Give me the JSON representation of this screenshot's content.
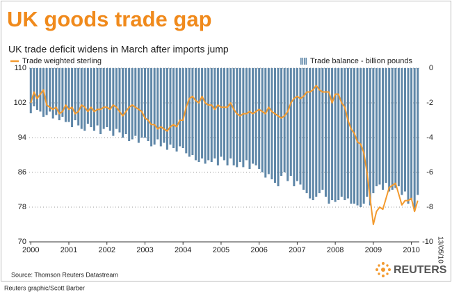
{
  "chart_data": {
    "type": "combo",
    "title": "UK goods trade gap",
    "subtitle": "UK trade deficit widens in March after imports jump",
    "source": "Source: Thomson Reuters Datastream",
    "credit": "Reuters graphic/Scott Barber",
    "date_note": "13/05/10",
    "logo": "REUTERS",
    "categories": [
      "2000",
      null,
      null,
      null,
      null,
      null,
      null,
      null,
      null,
      null,
      null,
      null,
      "2001",
      null,
      null,
      null,
      null,
      null,
      null,
      null,
      null,
      null,
      null,
      null,
      "2002",
      null,
      null,
      null,
      null,
      null,
      null,
      null,
      null,
      null,
      null,
      null,
      "2003",
      null,
      null,
      null,
      null,
      null,
      null,
      null,
      null,
      null,
      null,
      null,
      "2004",
      null,
      null,
      null,
      null,
      null,
      null,
      null,
      null,
      null,
      null,
      null,
      "2005",
      null,
      null,
      null,
      null,
      null,
      null,
      null,
      null,
      null,
      null,
      null,
      "2006",
      null,
      null,
      null,
      null,
      null,
      null,
      null,
      null,
      null,
      null,
      null,
      "2007",
      null,
      null,
      null,
      null,
      null,
      null,
      null,
      null,
      null,
      null,
      null,
      "2008",
      null,
      null,
      null,
      null,
      null,
      null,
      null,
      null,
      null,
      null,
      null,
      "2009",
      null,
      null,
      null,
      null,
      null,
      null,
      null,
      null,
      null,
      null,
      null,
      "2010",
      null,
      null
    ],
    "series": [
      {
        "name": "Trade balance - billion pounds",
        "type": "bar",
        "axis": "y2",
        "color": "#5f87a8",
        "values": [
          -2.6,
          -2.2,
          -2.4,
          -2.5,
          -2.8,
          -2.7,
          -2.5,
          -2.9,
          -2.7,
          -3.0,
          -2.8,
          -3.1,
          -3.1,
          -3.4,
          -3.0,
          -3.3,
          -3.5,
          -3.6,
          -3.2,
          -3.4,
          -3.6,
          -3.3,
          -3.8,
          -3.5,
          -3.4,
          -3.6,
          -3.9,
          -3.5,
          -3.7,
          -4.0,
          -3.8,
          -4.2,
          -4.1,
          -3.9,
          -4.3,
          -4.0,
          -4.0,
          -4.2,
          -4.5,
          -4.4,
          -4.1,
          -4.5,
          -4.3,
          -4.7,
          -4.4,
          -4.6,
          -4.8,
          -4.5,
          -4.6,
          -4.9,
          -5.1,
          -5.0,
          -5.3,
          -5.4,
          -5.2,
          -5.5,
          -5.3,
          -5.4,
          -5.2,
          -5.6,
          -5.1,
          -5.3,
          -5.6,
          -5.2,
          -5.6,
          -5.7,
          -5.4,
          -5.7,
          -5.3,
          -5.8,
          -5.5,
          -5.6,
          -5.8,
          -6.0,
          -6.3,
          -6.1,
          -6.4,
          -6.6,
          -6.8,
          -6.2,
          -6.0,
          -6.5,
          -6.2,
          -6.8,
          -6.5,
          -6.7,
          -7.0,
          -7.2,
          -7.5,
          -7.6,
          -7.4,
          -7.2,
          -7.0,
          -7.4,
          -7.8,
          -7.6,
          -7.7,
          -7.6,
          -7.4,
          -7.6,
          -7.5,
          -7.8,
          -7.8,
          -7.9,
          -8.0,
          -7.8,
          -7.4,
          -7.9,
          -7.2,
          -6.8,
          -6.7,
          -7.0,
          -6.6,
          -7.1,
          -7.0,
          -6.9,
          -6.8,
          -7.3,
          -7.1,
          -7.8,
          -7.6,
          -8.2,
          -7.3
        ]
      },
      {
        "name": "Trade weighted sterling",
        "type": "line",
        "axis": "y",
        "color": "#f39a2e",
        "values": [
          102,
          104.5,
          103,
          104,
          105,
          101.5,
          101,
          100.5,
          101,
          99.5,
          100,
          101.5,
          100.5,
          101,
          99.5,
          100,
          101.5,
          101,
          100,
          101,
          100,
          100.5,
          100.5,
          101,
          101,
          100.5,
          101.5,
          101,
          100,
          99,
          100,
          101,
          101.5,
          101,
          100.5,
          100,
          98.5,
          98,
          97,
          97,
          96,
          96.5,
          96,
          95.5,
          96.5,
          97,
          96.5,
          98,
          98,
          101,
          103,
          103.5,
          102.5,
          102,
          103.5,
          102,
          101.5,
          101.5,
          100.5,
          101.5,
          101,
          101,
          101,
          102,
          100.5,
          99.5,
          99,
          99.5,
          99.5,
          100,
          99.5,
          100,
          100.5,
          100,
          99.5,
          101,
          100,
          99.5,
          99,
          98.5,
          99,
          100,
          102,
          103,
          103.5,
          103,
          103.5,
          104.5,
          104.5,
          105,
          106,
          105,
          104.5,
          104.5,
          104.5,
          102,
          104,
          104,
          102,
          101,
          98,
          96,
          95,
          93,
          92.5,
          90.5,
          86,
          80,
          74,
          77,
          78,
          77.5,
          80,
          82.5,
          83,
          83.5,
          81,
          78.5,
          79.5,
          79.5,
          80,
          77,
          79.5
        ]
      }
    ],
    "ylim": [
      70,
      110
    ],
    "yticks": [
      70,
      78,
      86,
      94,
      102,
      110
    ],
    "y2lim": [
      -10,
      0
    ],
    "y2ticks": [
      0,
      -2,
      -4,
      -6,
      -8,
      -10
    ],
    "grid": true
  }
}
